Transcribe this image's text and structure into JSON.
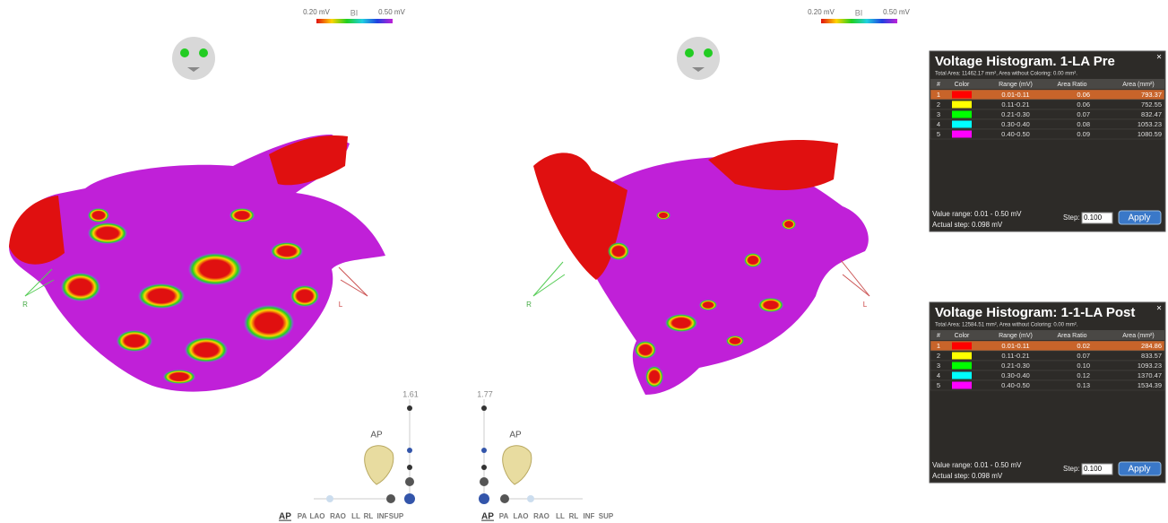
{
  "views": [
    {
      "scale_min": "0.20 mV",
      "scale_label": "BI",
      "scale_max": "0.50 mV",
      "axis_right": "R",
      "axis_left": "L",
      "zoom": "1.61",
      "orientation": "AP",
      "buttons": [
        "AP",
        "PA",
        "LAO",
        "RAO",
        "LL",
        "RL",
        "INF",
        "SUP"
      ]
    },
    {
      "scale_min": "0.20 mV",
      "scale_label": "BI",
      "scale_max": "0.50 mV",
      "axis_right": "R",
      "axis_left": "L",
      "zoom": "1.77",
      "orientation": "AP",
      "buttons": [
        "AP",
        "PA",
        "LAO",
        "RAO",
        "LL",
        "RL",
        "INF",
        "SUP"
      ]
    }
  ],
  "panels": [
    {
      "title": "Voltage Histogram. 1-LA Pre",
      "subtitle": "Total Area: 11462.17 mm², Area without Coloring: 0.00 mm².",
      "close": "×",
      "headers": [
        "#",
        "Color",
        "Range (mV)",
        "Area Ratio",
        "Area (mm²)"
      ],
      "rows": [
        [
          "1",
          "0.01-0.11",
          "0.06",
          "793.37"
        ],
        [
          "2",
          "0.11-0.21",
          "0.06",
          "752.55"
        ],
        [
          "3",
          "0.21-0.30",
          "0.07",
          "832.47"
        ],
        [
          "4",
          "0.30-0.40",
          "0.08",
          "1053.23"
        ],
        [
          "5",
          "0.40-0.50",
          "0.09",
          "1080.59"
        ]
      ],
      "value_range": "Value range: 0.01 - 0.50 mV",
      "step_label": "Step:",
      "step": "0.100",
      "apply": "Apply",
      "actual_step": "Actual step: 0.098 mV"
    },
    {
      "title": "Voltage Histogram: 1-1-LA Post",
      "subtitle": "Total Area: 12584.51 mm², Area without Coloring: 0.00 mm².",
      "close": "×",
      "headers": [
        "#",
        "Color",
        "Range (mV)",
        "Area Ratio",
        "Area (mm²)"
      ],
      "rows": [
        [
          "1",
          "0.01-0.11",
          "0.02",
          "284.86"
        ],
        [
          "2",
          "0.11-0.21",
          "0.07",
          "833.57"
        ],
        [
          "3",
          "0.21-0.30",
          "0.10",
          "1093.23"
        ],
        [
          "4",
          "0.30-0.40",
          "0.12",
          "1370.47"
        ],
        [
          "5",
          "0.40-0.50",
          "0.13",
          "1534.39"
        ]
      ],
      "value_range": "Value range: 0.01 - 0.50 mV",
      "step_label": "Step:",
      "step": "0.100",
      "apply": "Apply",
      "actual_step": "Actual step: 0.098 mV"
    }
  ]
}
